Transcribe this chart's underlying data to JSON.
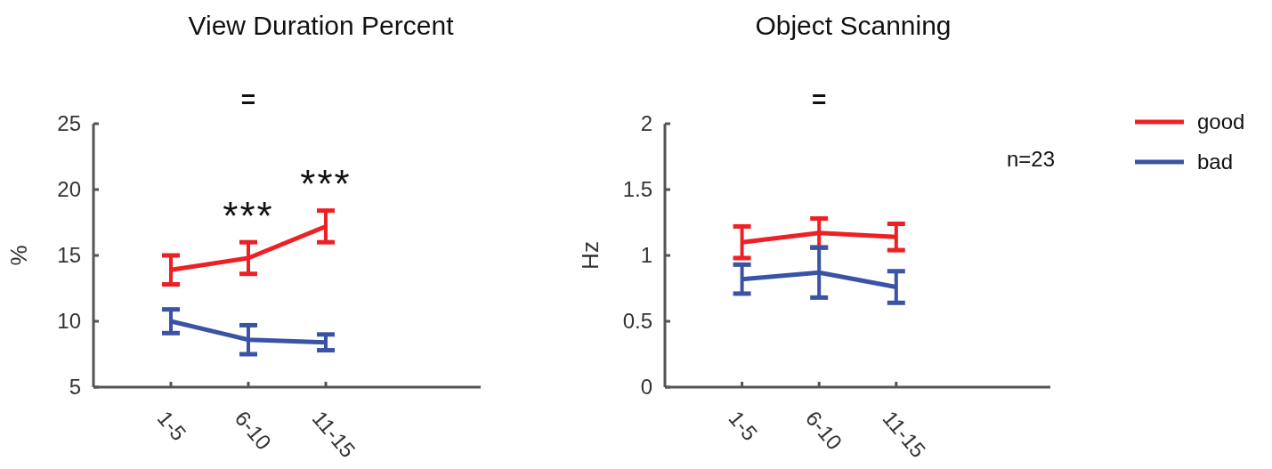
{
  "chart_data": [
    {
      "type": "line",
      "title": "View Duration Percent",
      "ylabel": "%",
      "categories": [
        "1-5",
        "6-10",
        "11-15"
      ],
      "ylim": [
        5,
        25
      ],
      "yticks": [
        5,
        10,
        15,
        20,
        25
      ],
      "marker": "none",
      "line_style": "solid",
      "grid": false,
      "legend": false,
      "series": [
        {
          "color": "#ed2024",
          "values": [
            13.9,
            14.8,
            17.2
          ],
          "errors": [
            1.1,
            1.2,
            1.2
          ]
        },
        {
          "color": "#3a53a4",
          "values": [
            10.0,
            8.6,
            8.4
          ],
          "errors": [
            0.9,
            1.1,
            0.6
          ]
        }
      ],
      "annotations": [
        "=",
        "***",
        "***"
      ]
    },
    {
      "type": "line",
      "title": "Object Scanning",
      "ylabel": "Hz",
      "categories": [
        "1-5",
        "6-10",
        "11-15"
      ],
      "ylim": [
        0,
        2
      ],
      "yticks": [
        0,
        0.5,
        1,
        1.5,
        2
      ],
      "marker": "none",
      "line_style": "solid",
      "grid": false,
      "legend": "top right",
      "series": [
        {
          "name": "good",
          "color": "#ed2024",
          "values": [
            1.1,
            1.17,
            1.14
          ],
          "errors": [
            0.12,
            0.11,
            0.1
          ]
        },
        {
          "name": "bad",
          "color": "#3a53a4",
          "values": [
            0.82,
            0.87,
            0.76
          ],
          "errors": [
            0.11,
            0.19,
            0.12
          ]
        }
      ],
      "annotations": [
        "=",
        "n=23"
      ]
    }
  ]
}
